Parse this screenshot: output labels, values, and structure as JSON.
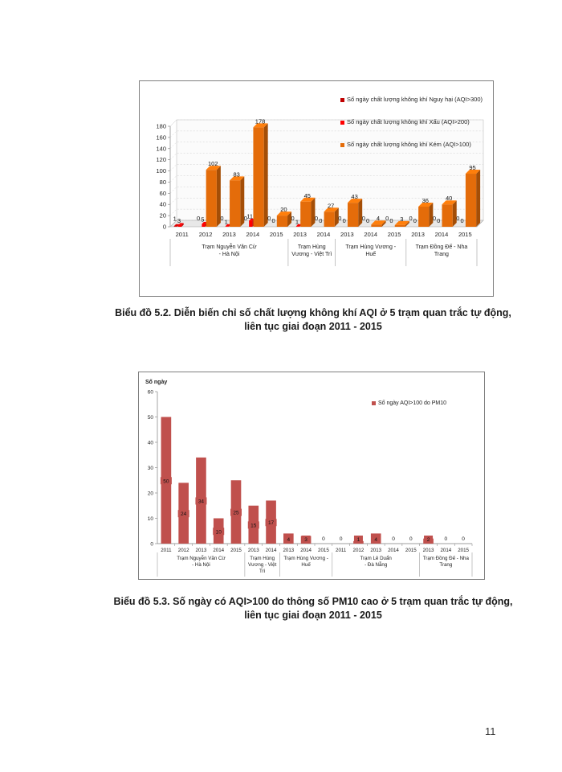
{
  "chart_data": [
    {
      "type": "bar",
      "caption_line1": "Biểu đồ 5.2. Diễn biến chỉ số chất lượng không khí AQI ở 5 trạm quan trắc tự động,",
      "caption_line2": "liên tục  giai đoạn 2011 - 2015",
      "categories": [
        "2011",
        "2012",
        "2013",
        "2014",
        "2015",
        "2013",
        "2014",
        "2013",
        "2014",
        "2015",
        "2013",
        "2014",
        "2015"
      ],
      "groups": [
        {
          "label_lines": [
            "Trạm Nguyễn Văn Cừ",
            "- Hà Nội"
          ],
          "count": 5
        },
        {
          "label_lines": [
            "Trạm Hùng",
            "Vương - Việt Trì"
          ],
          "count": 2
        },
        {
          "label_lines": [
            "Trạm Hùng Vương -",
            "Huế"
          ],
          "count": 3
        },
        {
          "label_lines": [
            "Trạm Đồng Đế - Nha",
            "Trang"
          ],
          "count": 3
        }
      ],
      "series": [
        {
          "name": "Số ngày chất lượng không khí Nguy hại (AQI>300)",
          "color": "#c00000",
          "values": [
            1,
            0,
            0,
            0,
            0,
            0,
            0,
            0,
            0,
            0,
            0,
            0,
            0
          ]
        },
        {
          "name": "Số ngày chất lượng không khí Xấu (AQI>200)",
          "color": "#ff0000",
          "values": [
            3,
            5,
            1,
            11,
            0,
            1,
            0,
            0,
            0,
            0,
            0,
            0,
            0
          ]
        },
        {
          "name": "Số ngày chất lượng không khí Kém (AQI>100)",
          "color": "#e46c0a",
          "values": [
            0,
            102,
            83,
            178,
            20,
            45,
            27,
            43,
            4,
            3,
            36,
            40,
            95
          ]
        }
      ],
      "series_labels": [
        [
          "1",
          "0",
          "0",
          "0",
          "0",
          "0",
          "0",
          "0",
          "0",
          "0",
          "0",
          "0",
          "0"
        ],
        [
          "3",
          "5",
          "1",
          "11",
          "0",
          "1",
          "0",
          "0",
          "0",
          "0",
          "0",
          "0",
          "0"
        ],
        [
          "",
          "102",
          "83",
          "178",
          "20",
          "45",
          "27",
          "43",
          "4",
          "3",
          "36",
          "40",
          "95"
        ]
      ],
      "ylim": [
        0,
        180
      ],
      "yticks": [
        0,
        20,
        40,
        60,
        80,
        100,
        120,
        140,
        160,
        180
      ],
      "legend_position": "top-right",
      "grid": true
    },
    {
      "type": "bar",
      "caption_line1": "Biểu đồ 5.3. Số ngày có AQI>100 do thông số PM10 cao ở 5 trạm quan trắc tự động,",
      "caption_line2": "liên tục  giai đoạn 2011 - 2015",
      "ylabel": "Số ngày",
      "categories": [
        "2011",
        "2012",
        "2013",
        "2014",
        "2015",
        "2013",
        "2014",
        "2013",
        "2014",
        "2015",
        "2011",
        "2012",
        "2013",
        "2014",
        "2015",
        "2013",
        "2014",
        "2015"
      ],
      "groups": [
        {
          "label_lines": [
            "Trạm Nguyễn Văn Cừ",
            "- Hà Nội"
          ],
          "count": 5
        },
        {
          "label_lines": [
            "Trạm Hùng",
            "Vương - Việt",
            "Trì"
          ],
          "count": 2
        },
        {
          "label_lines": [
            "Trạm Hùng Vương -",
            "Huế"
          ],
          "count": 3
        },
        {
          "label_lines": [
            "Trạm Lê Duẩn",
            "- Đà Nẵng"
          ],
          "count": 5
        },
        {
          "label_lines": [
            "Trạm Đồng Đế - Nha",
            "Trang"
          ],
          "count": 3
        }
      ],
      "series": [
        {
          "name": "Số ngày AQI>100 do PM10",
          "color": "#c0504d",
          "values": [
            50,
            24,
            34,
            10,
            25,
            15,
            17,
            4,
            3,
            0,
            0,
            1,
            4,
            0,
            0,
            2,
            0,
            0
          ]
        }
      ],
      "value_labels": [
        "50",
        "24",
        "34",
        "10",
        "25",
        "15",
        "17",
        "4",
        "3",
        "0",
        "0",
        "1",
        "4",
        "0",
        "0",
        "2",
        "0",
        "0"
      ],
      "ylim": [
        0,
        60
      ],
      "yticks": [
        0,
        10,
        20,
        30,
        40,
        50,
        60
      ],
      "legend_position": "top-right",
      "grid": false
    }
  ],
  "page_number": "11"
}
